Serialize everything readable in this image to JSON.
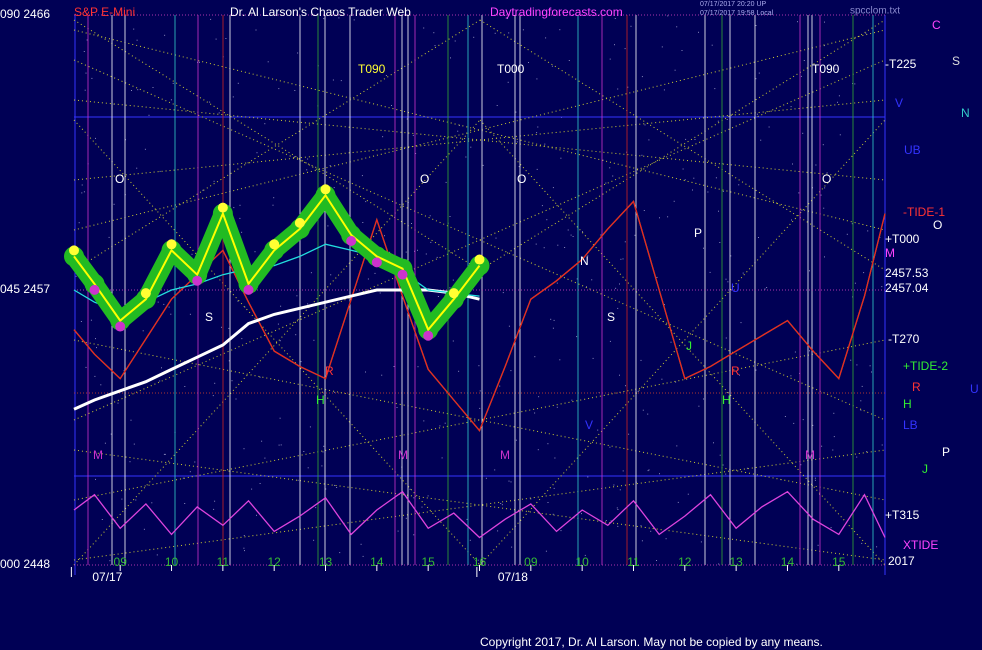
{
  "chart_data": {
    "type": "line",
    "title": "Dr. Al Larson's Chaos Trader Web",
    "symbol": "S&P E-Mini",
    "site": "Daytradingforecasts.com",
    "stamps": [
      "07/17/2017 20:20 UP",
      "07/17/2017 19:58 Local"
    ],
    "file": "spcclom.txt",
    "copyright": "Copyright 2017, Dr. Al Larson. May not be copied by any means.",
    "year": "2017",
    "x": [
      0.1,
      0.5,
      1,
      1.5,
      2,
      2.5,
      3,
      3.5,
      4,
      4.5,
      5,
      5.5,
      6,
      6.5,
      7,
      7.5,
      8,
      8.5,
      9,
      9.5,
      10,
      10.5,
      11,
      11.5,
      12,
      12.5,
      13,
      13.5,
      14,
      14.5,
      15,
      15.5,
      15.9
    ],
    "xlim": [
      0.1,
      15.9
    ],
    "xticks": [
      {
        "value": 1,
        "label": "09"
      },
      {
        "value": 2,
        "label": "10"
      },
      {
        "value": 3,
        "label": "11"
      },
      {
        "value": 4,
        "label": "12"
      },
      {
        "value": 5,
        "label": "13"
      },
      {
        "value": 6,
        "label": "14"
      },
      {
        "value": 7,
        "label": "15"
      },
      {
        "value": 8,
        "label": "16"
      },
      {
        "value": 9,
        "label": "09"
      },
      {
        "value": 10,
        "label": "10"
      },
      {
        "value": 11,
        "label": "11"
      },
      {
        "value": 12,
        "label": "12"
      },
      {
        "value": 13,
        "label": "13"
      },
      {
        "value": 14,
        "label": "14"
      },
      {
        "value": 15,
        "label": "15"
      }
    ],
    "date_ticks": [
      {
        "value": 0.75,
        "label": "07/17"
      },
      {
        "value": 8.65,
        "label": "07/18"
      }
    ],
    "ylim": [
      2448,
      2466
    ],
    "yticks": [
      {
        "value": 2466,
        "label": "090  2466"
      },
      {
        "value": 2457,
        "label": "045  2457"
      },
      {
        "value": 2448,
        "label": "000  2448"
      }
    ],
    "grid": true,
    "series": [
      {
        "color": "#33cc33",
        "values": [
          2455.7,
          2454.9,
          2454.1,
          2455.4,
          2456.7,
          2457.5,
          2458.3,
          2456.6,
          2455.0,
          2454.5,
          2454.1,
          2456.7,
          2459.3,
          2456.8,
          2454.4,
          2453.4,
          2452.4,
          2454.5,
          2456.7,
          2457.3,
          2458.0,
          2459.0,
          2459.9,
          2457.0,
          2454.1,
          2454.5,
          2455.0,
          2455.5,
          2456.0,
          2455.0,
          2454.1,
          2456.8,
          2459.5
        ]
      },
      {
        "color": "#ee2222",
        "values": [
          2455.7,
          2454.9,
          2454.1,
          2455.4,
          2456.7,
          2457.5,
          2458.3,
          2456.6,
          2455.0,
          2454.5,
          2454.1,
          2456.7,
          2459.3,
          2456.8,
          2454.4,
          2453.4,
          2452.4,
          2454.5,
          2456.7,
          2457.3,
          2458.0,
          2459.0,
          2459.9,
          2457.0,
          2454.1,
          2454.5,
          2455.0,
          2455.5,
          2456.0,
          2455.0,
          2454.1,
          2456.8,
          2459.5
        ]
      },
      {
        "color": "#dd44dd",
        "values": [
          2449.8,
          2450.3,
          2449.2,
          2450.0,
          2449.0,
          2449.9,
          2449.3,
          2450.1,
          2449.1,
          2449.6,
          2450.2,
          2449.0,
          2449.8,
          2450.4,
          2449.2,
          2449.7,
          2448.9,
          2449.5,
          2450.0,
          2449.1,
          2449.8,
          2449.3,
          2450.1,
          2449.0,
          2449.6,
          2450.3,
          2449.2,
          2449.9,
          2450.4,
          2449.5,
          2449.0,
          2450.3,
          2448.9
        ]
      },
      {
        "color": "#ffffff",
        "values": [
          2453.1,
          2453.4,
          2453.7,
          2454.0,
          2454.4,
          2454.8,
          2455.2,
          2455.9,
          2456.2,
          2456.4,
          2456.6,
          2456.8,
          2457.0,
          2457.0,
          2457.0,
          2456.9,
          2456.7,
          null,
          null,
          null,
          null,
          null,
          null,
          null,
          null,
          null,
          null,
          null,
          null,
          null,
          null,
          null,
          null
        ]
      },
      {
        "color": "#22dddd",
        "values": [
          2457.0,
          2456.6,
          2456.3,
          2456.6,
          2457.0,
          2457.2,
          2457.5,
          2457.7,
          2457.8,
          2458.1,
          2458.5,
          2458.3,
          2458.1,
          2457.6,
          2457.0,
          2456.9,
          2456.8,
          null,
          null,
          null,
          null,
          null,
          null,
          null,
          null,
          null,
          null,
          null,
          null,
          null,
          null,
          null,
          null
        ]
      },
      {
        "color": "#ffff00",
        "glow": "#22bb22",
        "values": [
          2458.1,
          2457.2,
          2456.0,
          2456.7,
          2458.3,
          2457.5,
          2459.5,
          2457.2,
          2458.3,
          2459.0,
          2460.1,
          2458.8,
          2458.1,
          2457.7,
          2455.7,
          2456.7,
          2457.8,
          null,
          null,
          null,
          null,
          null,
          null,
          null,
          null,
          null,
          null,
          null,
          null,
          null,
          null,
          null,
          null
        ]
      }
    ],
    "annotations": [
      "-T225",
      "T090",
      "T000",
      "T090",
      "C",
      "S",
      "N",
      "V",
      "UB",
      "-TIDE-1",
      "O",
      "+T000",
      "M",
      "2457.53",
      "2457.04",
      "-T270",
      "+TIDE-2",
      "R",
      "U",
      "H",
      "LB",
      "P",
      "J",
      "+T315",
      "XTIDE",
      "O",
      "O",
      "O",
      "O",
      "M",
      "M",
      "M",
      "M",
      "S",
      "S",
      "N",
      "P",
      "H",
      "H",
      "R",
      "R",
      "J",
      "U",
      "V"
    ]
  }
}
